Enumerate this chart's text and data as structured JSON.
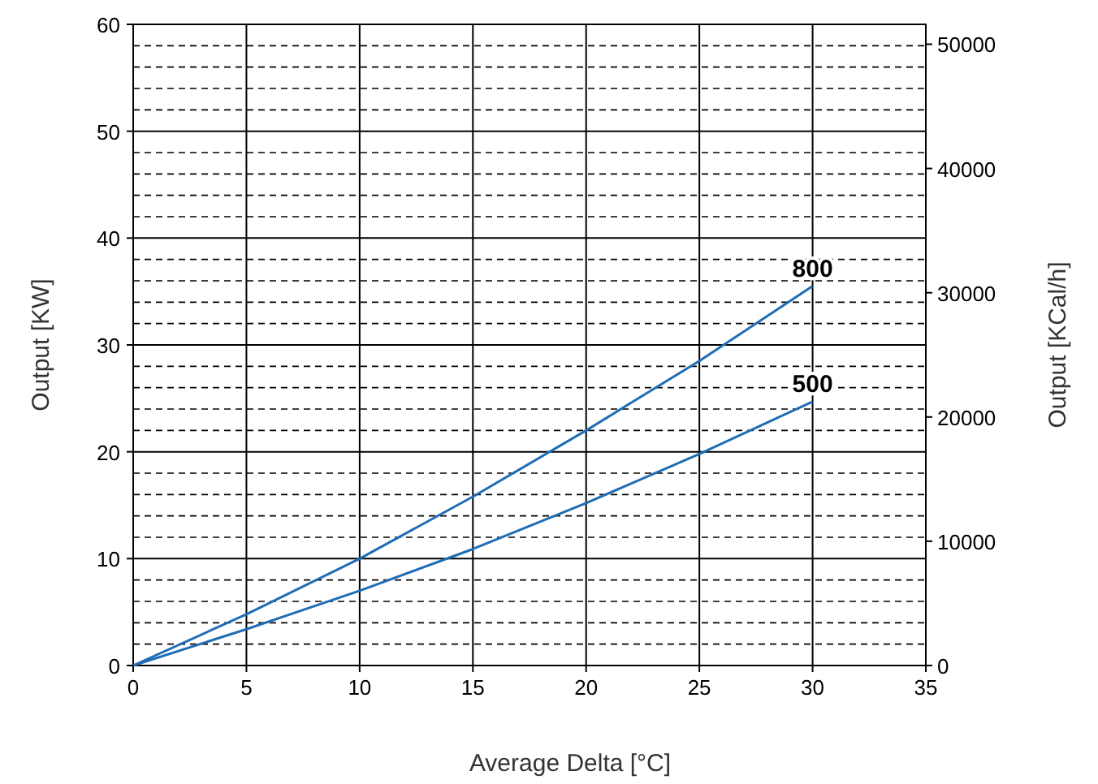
{
  "chart_data": {
    "type": "line",
    "xlabel": "Average Delta [°C]",
    "ylabel": "Output [KW]",
    "y2label": "Output [KCal/h]",
    "x": [
      0,
      5,
      10,
      15,
      20,
      25,
      30
    ],
    "series": [
      {
        "name": "800",
        "color": "#1f6db5",
        "values": [
          0,
          4.8,
          10,
          15.8,
          22,
          28.5,
          35.5
        ]
      },
      {
        "name": "500",
        "color": "#1f6db5",
        "values": [
          0,
          3.4,
          7,
          10.9,
          15.2,
          19.8,
          24.7
        ]
      }
    ],
    "xlim": [
      0,
      35
    ],
    "xticks": [
      0,
      5,
      10,
      15,
      20,
      25,
      30,
      35
    ],
    "ylim": [
      0,
      60
    ],
    "yticks": [
      0,
      {
        "value": 2,
        "label": null
      },
      {
        "value": 4,
        "label": null
      },
      {
        "value": 6,
        "label": null
      },
      {
        "value": 8,
        "label": null
      },
      10,
      {
        "value": 12,
        "label": null
      },
      {
        "value": 14,
        "label": null
      },
      {
        "value": 16,
        "label": null
      },
      {
        "value": 18,
        "label": null
      },
      20,
      {
        "value": 22,
        "label": null
      },
      {
        "value": 24,
        "label": null
      },
      {
        "value": 26,
        "label": null
      },
      {
        "value": 28,
        "label": null
      },
      30,
      {
        "value": 32,
        "label": null
      },
      {
        "value": 34,
        "label": null
      },
      {
        "value": 36,
        "label": null
      },
      {
        "value": 38,
        "label": null
      },
      40,
      {
        "value": 42,
        "label": null
      },
      {
        "value": 44,
        "label": null
      },
      {
        "value": 46,
        "label": null
      },
      {
        "value": 48,
        "label": null
      },
      50,
      {
        "value": 52,
        "label": null
      },
      {
        "value": 54,
        "label": null
      },
      {
        "value": 56,
        "label": null
      },
      {
        "value": 58,
        "label": null
      },
      60
    ],
    "y2lim": [
      0,
      51600
    ],
    "y2ticks": [
      0,
      10000,
      20000,
      30000,
      40000,
      50000
    ],
    "grid": true,
    "marker": "none",
    "line_style": "solid"
  }
}
